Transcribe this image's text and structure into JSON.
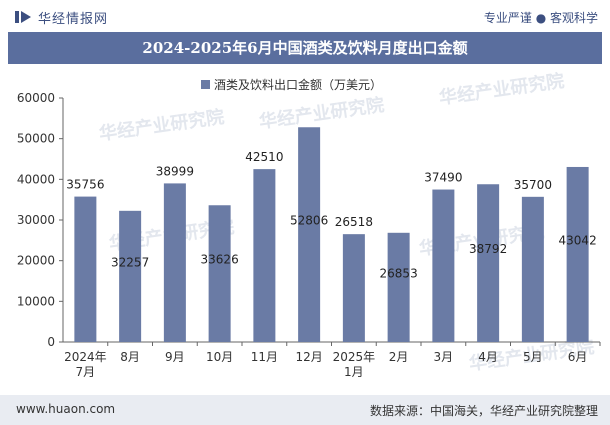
{
  "header": {
    "brand": "华经情报网",
    "tagline": "专业严谨 ● 客观科学",
    "title": "2024-2025年6月中国酒类及饮料月度出口金额"
  },
  "footer": {
    "site": "www.huaon.com",
    "source": "数据来源：中国海关，华经产业研究院整理"
  },
  "watermark": "华经产业研究院",
  "colors": {
    "bar": "#6a7ba5",
    "title_bg": "#5a6e9e",
    "footer_bg": "#e9ecf2"
  },
  "chart_data": {
    "type": "bar",
    "categories": [
      "2024年\n7月",
      "8月",
      "9月",
      "10月",
      "11月",
      "12月",
      "2025年\n1月",
      "2月",
      "3月",
      "4月",
      "5月",
      "6月"
    ],
    "series": [
      {
        "name": "酒类及饮料出口金额（万美元）",
        "values": [
          35756,
          32257,
          38999,
          33626,
          42510,
          52806,
          26518,
          26853,
          37490,
          38792,
          35700,
          43042
        ]
      }
    ],
    "label_positions": [
      "above",
      "inside",
      "above",
      "inside",
      "above",
      "inside",
      "above",
      "inside",
      "above",
      "inside",
      "above",
      "inside"
    ],
    "ylim": [
      0,
      60000
    ],
    "yticks": [
      0,
      10000,
      20000,
      30000,
      40000,
      50000,
      60000
    ],
    "legend": "top-center",
    "grid": false
  }
}
